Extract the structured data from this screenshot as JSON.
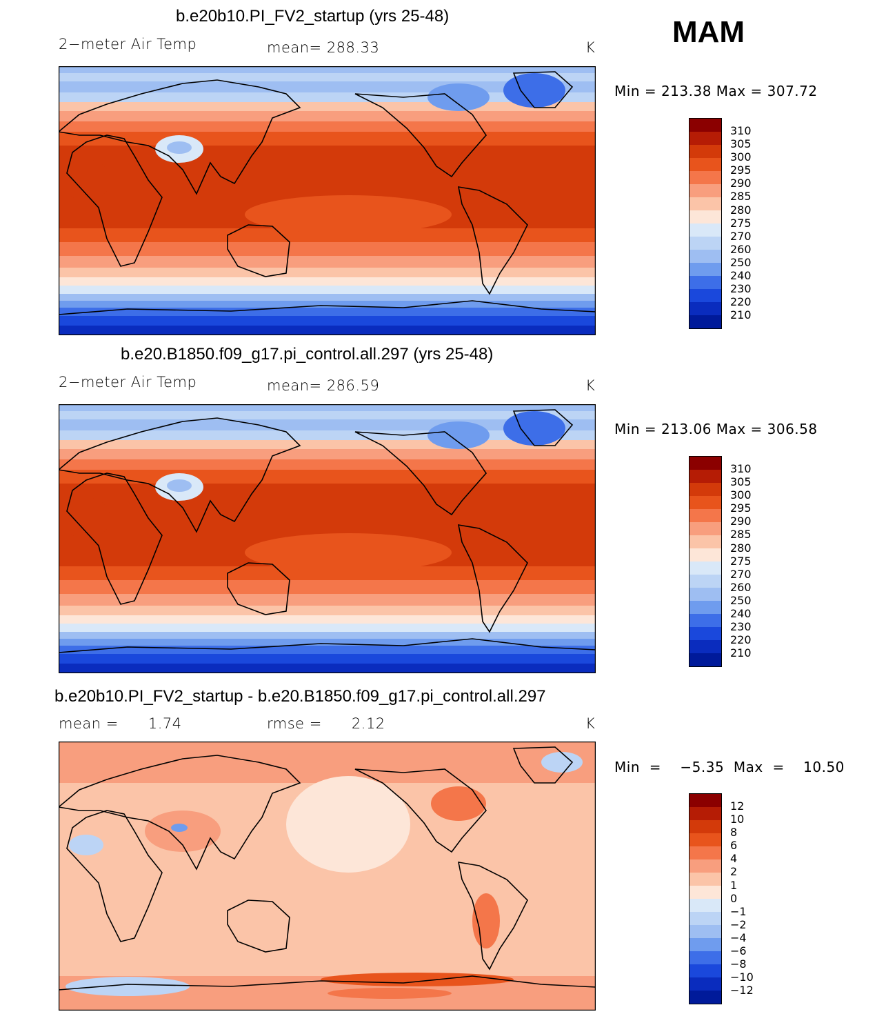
{
  "season": "MAM",
  "panels": [
    {
      "title": "b.e20b10.PI_FV2_startup (yrs 25-48)",
      "left_label": "2−meter Air Temp",
      "center_label": "mean=  288.33",
      "right_label": "K",
      "minmax": "Min  =  213.38  Max  =  307.72",
      "field": "temp",
      "colors": [
        "#8b0000",
        "#b51c05",
        "#d33a0a",
        "#e8541c",
        "#f4764a",
        "#f89e7e",
        "#fbc4a8",
        "#fde6d8",
        "#d9e8f8",
        "#bcd4f5",
        "#9ebef2",
        "#6f9cee",
        "#3d6ee8",
        "#1a48dc",
        "#0a2cbe",
        "#001a9a"
      ],
      "ticks": [
        "310",
        "305",
        "300",
        "295",
        "290",
        "285",
        "280",
        "275",
        "270",
        "260",
        "250",
        "240",
        "230",
        "220",
        "210"
      ]
    },
    {
      "title": "b.e20.B1850.f09_g17.pi_control.all.297 (yrs 25-48)",
      "left_label": "2−meter Air Temp",
      "center_label": "mean=  286.59",
      "right_label": "K",
      "minmax": "Min  =  213.06  Max  =  306.58",
      "field": "temp",
      "colors": [
        "#8b0000",
        "#b51c05",
        "#d33a0a",
        "#e8541c",
        "#f4764a",
        "#f89e7e",
        "#fbc4a8",
        "#fde6d8",
        "#d9e8f8",
        "#bcd4f5",
        "#9ebef2",
        "#6f9cee",
        "#3d6ee8",
        "#1a48dc",
        "#0a2cbe",
        "#001a9a"
      ],
      "ticks": [
        "310",
        "305",
        "300",
        "295",
        "290",
        "285",
        "280",
        "275",
        "270",
        "260",
        "250",
        "240",
        "230",
        "220",
        "210"
      ]
    },
    {
      "title": "b.e20b10.PI_FV2_startup - b.e20.B1850.f09_g17.pi_control.all.297",
      "left_label": "mean =      1.74",
      "center_label": "rmse =      2.12",
      "right_label": "K",
      "minmax": "Min  =    −5.35  Max  =    10.50",
      "field": "diff",
      "colors": [
        "#8b0000",
        "#b51c05",
        "#d33a0a",
        "#e8541c",
        "#f4764a",
        "#f89e7e",
        "#fbc4a8",
        "#fde6d8",
        "#d9e8f8",
        "#bcd4f5",
        "#9ebef2",
        "#6f9cee",
        "#3d6ee8",
        "#1a48dc",
        "#0a2cbe",
        "#001a9a"
      ],
      "ticks": [
        "12",
        "10",
        "8",
        "6",
        "4",
        "2",
        "1",
        "0",
        "−1",
        "−2",
        "−4",
        "−6",
        "−8",
        "−10",
        "−12"
      ]
    }
  ]
}
